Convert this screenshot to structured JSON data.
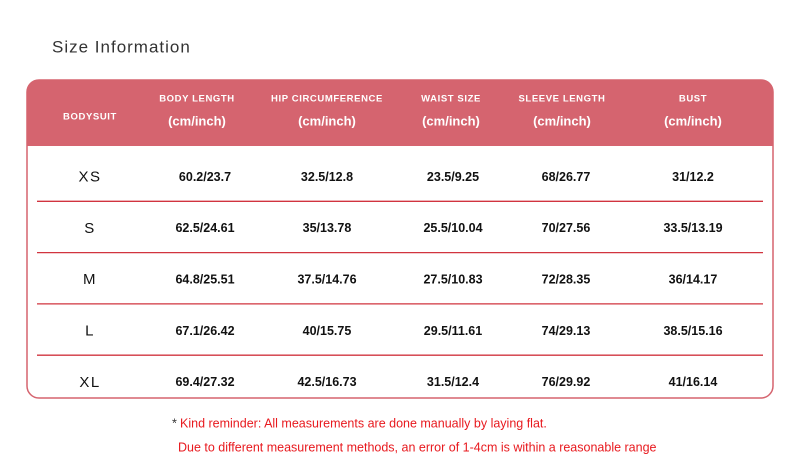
{
  "title": "Size Information",
  "table": {
    "corner": "BODYSUIT",
    "columns": [
      {
        "label": "BODY LENGTH",
        "unit": "(cm/inch)"
      },
      {
        "label": "HIP CIRCUMFERENCE",
        "unit": "(cm/inch)"
      },
      {
        "label": "WAIST SIZE",
        "unit": "(cm/inch)"
      },
      {
        "label": "SLEEVE LENGTH",
        "unit": "(cm/inch)"
      },
      {
        "label": "BUST",
        "unit": "(cm/inch)"
      }
    ],
    "rows": [
      [
        "XS",
        "60.2/23.7",
        "32.5/12.8",
        "23.5/9.25",
        "68/26.77",
        "31/12.2"
      ],
      [
        "S",
        "62.5/24.61",
        "35/13.78",
        "25.5/10.04",
        "70/27.56",
        "33.5/13.19"
      ],
      [
        "M",
        "64.8/25.51",
        "37.5/14.76",
        "27.5/10.83",
        "72/28.35",
        "36/14.17"
      ],
      [
        "L",
        "67.1/26.42",
        "40/15.75",
        "29.5/11.61",
        "74/29.13",
        "38.5/15.16"
      ],
      [
        "XL",
        "69.4/27.32",
        "42.5/16.73",
        "31.5/12.4",
        "76/29.92",
        "41/16.14"
      ]
    ]
  },
  "notes": {
    "marker": "*",
    "lines": [
      "Kind reminder: All measurements are done manually by laying flat.",
      "Due to different measurement methods, an error of 1-4cm is within a reasonable range"
    ]
  }
}
